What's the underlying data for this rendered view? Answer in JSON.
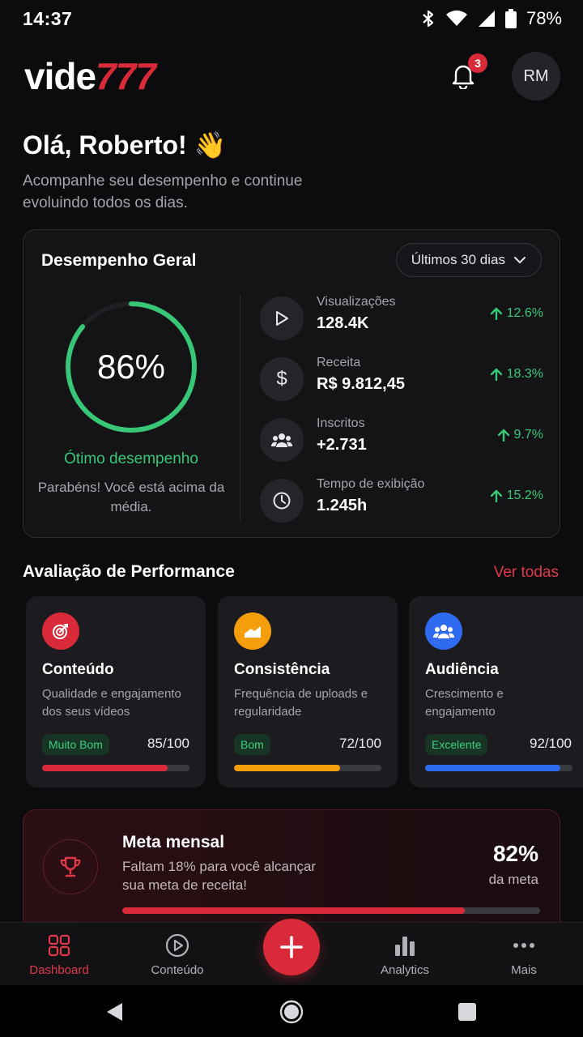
{
  "status_bar": {
    "time": "14:37",
    "battery": "78%"
  },
  "header": {
    "logo_main": "vide",
    "logo_accent": "777",
    "notification_count": "3",
    "avatar_initials": "RM"
  },
  "greeting": {
    "title": "Olá, Roberto! 👋",
    "subtitle": "Acompanhe seu desempenho e continue evoluindo todos os dias."
  },
  "performance": {
    "title": "Desempenho Geral",
    "period": "Últimos 30 dias",
    "score": "86%",
    "score_fraction": 0.86,
    "status": "Ótimo desempenho",
    "description": "Parabéns! Você está acima da média.",
    "metrics": [
      {
        "icon": "play-icon",
        "label": "Visualizações",
        "value": "128.4K",
        "change": "12.6%"
      },
      {
        "icon": "dollar-icon",
        "label": "Receita",
        "value": "R$ 9.812,45",
        "change": "18.3%"
      },
      {
        "icon": "users-icon",
        "label": "Inscritos",
        "value": "+2.731",
        "change": "9.7%"
      },
      {
        "icon": "clock-icon",
        "label": "Tempo de exibição",
        "value": "1.245h",
        "change": "15.2%"
      }
    ]
  },
  "evaluation": {
    "title": "Avaliação de Performance",
    "see_all": "Ver todas",
    "cards": [
      {
        "icon": "target-icon",
        "icon_color": "#d92a3a",
        "title": "Conteúdo",
        "description": "Qualidade e engajamento dos seus vídeos",
        "badge": "Muito Bom",
        "score": "85/100",
        "progress": 0.85,
        "bar_color": "#d92a3a"
      },
      {
        "icon": "chart-icon",
        "icon_color": "#f59e0b",
        "title": "Consistência",
        "description": "Frequência de uploads e regularidade",
        "badge": "Bom",
        "score": "72/100",
        "progress": 0.72,
        "bar_color": "#f59e0b"
      },
      {
        "icon": "audience-icon",
        "icon_color": "#2f6bf0",
        "title": "Audiência",
        "description": "Crescimento e engajamento",
        "badge": "Excelente",
        "score": "92/100",
        "progress": 0.92,
        "bar_color": "#2f6bf0"
      }
    ]
  },
  "goal": {
    "title": "Meta mensal",
    "description": "Faltam 18% para você alcançar sua meta de receita!",
    "percent": "82%",
    "percent_label": "da meta",
    "progress": 0.82
  },
  "bottom_nav": {
    "items": [
      {
        "label": "Dashboard",
        "active": true
      },
      {
        "label": "Conteúdo"
      },
      {
        "label": "Analytics"
      },
      {
        "label": "Mais"
      }
    ]
  }
}
